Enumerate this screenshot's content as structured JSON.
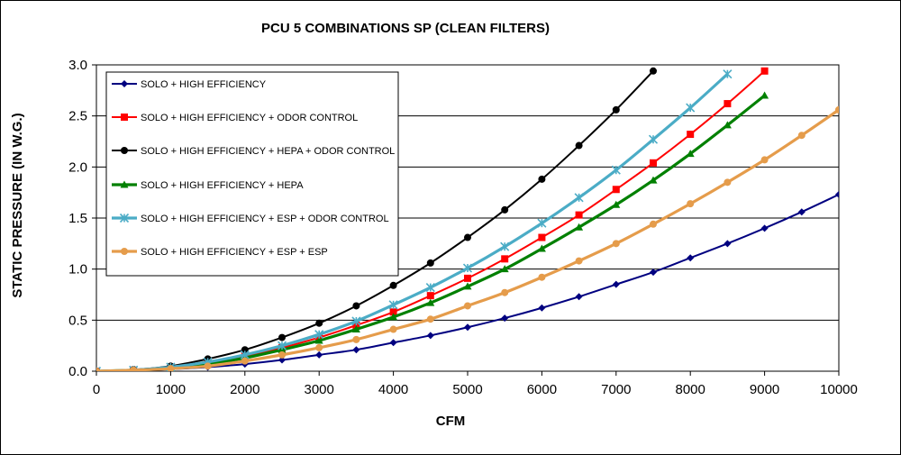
{
  "chart_data": {
    "type": "line",
    "title": "PCU 5 COMBINATIONS SP (CLEAN FILTERS)",
    "xlabel": "CFM",
    "ylabel": "STATIC PRESSURE (IN W.G.)",
    "xlim": [
      0,
      10000
    ],
    "ylim": [
      0,
      3.0
    ],
    "x_ticks": [
      "0",
      "1000",
      "2000",
      "3000",
      "4000",
      "5000",
      "6000",
      "7000",
      "8000",
      "9000",
      "10000"
    ],
    "y_ticks": [
      "0.0",
      "0.5",
      "1.0",
      "1.5",
      "2.0",
      "2.5",
      "3.0"
    ],
    "grid": "horizontal",
    "legend_position": "top-left",
    "series": [
      {
        "name": "SOLO + HIGH EFFICIENCY",
        "color": "#000080",
        "marker": "diamond",
        "stroke": "thin",
        "x": [
          0,
          500,
          1000,
          1500,
          2000,
          2500,
          3000,
          3500,
          4000,
          4500,
          5000,
          5500,
          6000,
          6500,
          7000,
          7500,
          8000,
          8500,
          9000,
          9500,
          10000
        ],
        "values": [
          0,
          0.005,
          0.02,
          0.04,
          0.07,
          0.11,
          0.16,
          0.21,
          0.28,
          0.35,
          0.43,
          0.52,
          0.62,
          0.73,
          0.85,
          0.97,
          1.11,
          1.25,
          1.4,
          1.56,
          1.73
        ]
      },
      {
        "name": "SOLO + HIGH EFFICIENCY + ODOR CONTROL",
        "color": "#FF0000",
        "marker": "square",
        "stroke": "thin",
        "x": [
          0,
          500,
          1000,
          1500,
          2000,
          2500,
          3000,
          3500,
          4000,
          4500,
          5000,
          5500,
          6000,
          6500,
          7000,
          7500,
          8000,
          8500,
          9000
        ],
        "values": [
          0,
          0.01,
          0.04,
          0.08,
          0.15,
          0.23,
          0.33,
          0.45,
          0.58,
          0.74,
          0.91,
          1.1,
          1.31,
          1.53,
          1.78,
          2.04,
          2.32,
          2.62,
          2.94
        ]
      },
      {
        "name": "SOLO + HIGH EFFICIENCY + HEPA + ODOR CONTROL",
        "color": "#000000",
        "marker": "circle",
        "stroke": "thin",
        "x": [
          0,
          500,
          1000,
          1500,
          2000,
          2500,
          3000,
          3500,
          4000,
          4500,
          5000,
          5500,
          6000,
          6500,
          7000,
          7500
        ],
        "values": [
          0,
          0.015,
          0.05,
          0.12,
          0.21,
          0.33,
          0.47,
          0.64,
          0.84,
          1.06,
          1.31,
          1.58,
          1.88,
          2.21,
          2.56,
          2.94
        ]
      },
      {
        "name": "SOLO + HIGH EFFICIENCY + HEPA",
        "color": "#008000",
        "marker": "triangle",
        "stroke": "thick",
        "x": [
          0,
          500,
          1000,
          1500,
          2000,
          2500,
          3000,
          3500,
          4000,
          4500,
          5000,
          5500,
          6000,
          6500,
          7000,
          7500,
          8000,
          8500,
          9000
        ],
        "values": [
          0,
          0.01,
          0.03,
          0.07,
          0.13,
          0.21,
          0.3,
          0.41,
          0.53,
          0.67,
          0.83,
          1.0,
          1.2,
          1.41,
          1.63,
          1.87,
          2.13,
          2.41,
          2.7
        ]
      },
      {
        "name": "SOLO + HIGH EFFICIENCY + ESP + ODOR CONTROL",
        "color": "#4BACC6",
        "marker": "star",
        "stroke": "thick",
        "x": [
          0,
          500,
          1000,
          1500,
          2000,
          2500,
          3000,
          3500,
          4000,
          4500,
          5000,
          5500,
          6000,
          6500,
          7000,
          7500,
          8000,
          8500
        ],
        "values": [
          0,
          0.01,
          0.04,
          0.09,
          0.16,
          0.25,
          0.36,
          0.49,
          0.65,
          0.82,
          1.01,
          1.22,
          1.45,
          1.7,
          1.97,
          2.27,
          2.58,
          2.91
        ]
      },
      {
        "name": "SOLO + HIGH EFFICIENCY + ESP + ESP",
        "color": "#E59C4B",
        "marker": "circle",
        "stroke": "thick",
        "x": [
          0,
          500,
          1000,
          1500,
          2000,
          2500,
          3000,
          3500,
          4000,
          4500,
          5000,
          5500,
          6000,
          6500,
          7000,
          7500,
          8000,
          8500,
          9000,
          9500,
          10000
        ],
        "values": [
          0,
          0.01,
          0.025,
          0.05,
          0.1,
          0.16,
          0.23,
          0.31,
          0.41,
          0.51,
          0.64,
          0.77,
          0.92,
          1.08,
          1.25,
          1.44,
          1.64,
          1.85,
          2.07,
          2.31,
          2.56
        ]
      }
    ]
  }
}
